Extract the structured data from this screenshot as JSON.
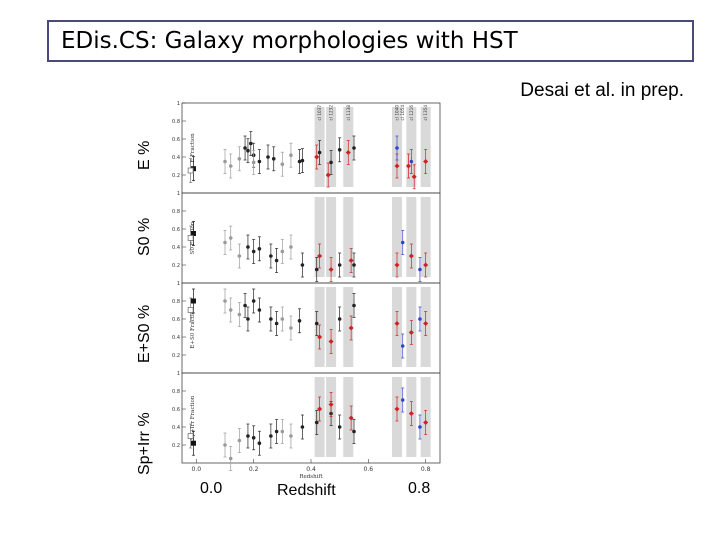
{
  "title": "EDis.CS: Galaxy morphologies with HST",
  "credit": "Desai et al. in prep.",
  "ylabels": {
    "e": "E %",
    "s0": "S0 %",
    "es0": "E+S0 %",
    "sp": "Sp+Irr %"
  },
  "xlabels": {
    "left": "0.0",
    "center": "Redshift",
    "right": "0.8"
  },
  "chart_data": {
    "type": "scatter",
    "xlabel": "Redshift",
    "xlim": [
      -0.05,
      0.85
    ],
    "xticks": [
      "0.0",
      "0.2",
      "0.4",
      "0.6",
      "0.8"
    ],
    "panels": [
      {
        "name": "E %",
        "inner_ylabel": "E Fraction",
        "ylim": [
          0,
          1
        ],
        "yticks": [
          "0.2",
          "0.4",
          "0.6",
          "0.8",
          "1"
        ],
        "series": [
          {
            "color": "#222222",
            "marker": "dot",
            "points": [
              [
                0.17,
                0.5
              ],
              [
                0.18,
                0.47
              ],
              [
                0.19,
                0.55
              ],
              [
                0.2,
                0.42
              ],
              [
                0.22,
                0.35
              ],
              [
                0.25,
                0.4
              ],
              [
                0.27,
                0.38
              ],
              [
                0.36,
                0.35
              ],
              [
                0.37,
                0.36
              ],
              [
                0.43,
                0.45
              ],
              [
                0.47,
                0.34
              ],
              [
                0.5,
                0.48
              ],
              [
                0.55,
                0.5
              ]
            ]
          },
          {
            "color": "#9a9a9a",
            "marker": "dot",
            "points": [
              [
                0.1,
                0.35
              ],
              [
                0.12,
                0.3
              ],
              [
                0.15,
                0.38
              ],
              [
                0.2,
                0.34
              ],
              [
                0.3,
                0.32
              ],
              [
                0.33,
                0.42
              ]
            ]
          },
          {
            "color": "#cc2222",
            "marker": "diamond",
            "points": [
              [
                0.42,
                0.4
              ],
              [
                0.46,
                0.2
              ],
              [
                0.53,
                0.45
              ],
              [
                0.7,
                0.3
              ],
              [
                0.74,
                0.3
              ],
              [
                0.76,
                0.18
              ],
              [
                0.8,
                0.35
              ]
            ]
          },
          {
            "color": "#3344cc",
            "marker": "dot",
            "points": [
              [
                0.7,
                0.5
              ],
              [
                0.75,
                0.35
              ]
            ]
          },
          {
            "color": "#111111",
            "marker": "square",
            "points": [
              [
                -0.01,
                0.27
              ]
            ]
          },
          {
            "color": "#777777",
            "marker": "open-square",
            "points": [
              [
                -0.02,
                0.25
              ]
            ]
          }
        ]
      },
      {
        "name": "S0 %",
        "inner_ylabel": "S0 Fraction",
        "ylim": [
          0,
          1
        ],
        "yticks": [
          "0.2",
          "0.4",
          "0.6",
          "0.8",
          "1"
        ],
        "series": [
          {
            "color": "#222222",
            "marker": "dot",
            "points": [
              [
                0.18,
                0.4
              ],
              [
                0.2,
                0.35
              ],
              [
                0.22,
                0.38
              ],
              [
                0.26,
                0.3
              ],
              [
                0.28,
                0.25
              ],
              [
                0.37,
                0.2
              ],
              [
                0.42,
                0.15
              ],
              [
                0.5,
                0.2
              ],
              [
                0.55,
                0.2
              ]
            ]
          },
          {
            "color": "#9a9a9a",
            "marker": "dot",
            "points": [
              [
                0.1,
                0.45
              ],
              [
                0.12,
                0.5
              ],
              [
                0.15,
                0.3
              ],
              [
                0.3,
                0.35
              ],
              [
                0.33,
                0.4
              ]
            ]
          },
          {
            "color": "#cc2222",
            "marker": "diamond",
            "points": [
              [
                0.43,
                0.3
              ],
              [
                0.47,
                0.15
              ],
              [
                0.54,
                0.25
              ],
              [
                0.7,
                0.2
              ],
              [
                0.75,
                0.3
              ],
              [
                0.8,
                0.2
              ]
            ]
          },
          {
            "color": "#3344cc",
            "marker": "dot",
            "points": [
              [
                0.72,
                0.45
              ],
              [
                0.78,
                0.15
              ]
            ]
          },
          {
            "color": "#111111",
            "marker": "square",
            "points": [
              [
                -0.01,
                0.55
              ]
            ]
          },
          {
            "color": "#777777",
            "marker": "open-square",
            "points": [
              [
                -0.02,
                0.5
              ]
            ]
          }
        ]
      },
      {
        "name": "E+S0 %",
        "inner_ylabel": "E+S0 Fraction",
        "ylim": [
          0,
          1
        ],
        "yticks": [
          "0.2",
          "0.4",
          "0.6",
          "0.8",
          "1"
        ],
        "series": [
          {
            "color": "#222222",
            "marker": "dot",
            "points": [
              [
                0.17,
                0.75
              ],
              [
                0.18,
                0.6
              ],
              [
                0.2,
                0.8
              ],
              [
                0.22,
                0.7
              ],
              [
                0.26,
                0.6
              ],
              [
                0.28,
                0.55
              ],
              [
                0.36,
                0.58
              ],
              [
                0.42,
                0.55
              ],
              [
                0.5,
                0.6
              ],
              [
                0.55,
                0.75
              ]
            ]
          },
          {
            "color": "#9a9a9a",
            "marker": "dot",
            "points": [
              [
                0.1,
                0.8
              ],
              [
                0.12,
                0.7
              ],
              [
                0.15,
                0.65
              ],
              [
                0.3,
                0.6
              ],
              [
                0.33,
                0.5
              ]
            ]
          },
          {
            "color": "#cc2222",
            "marker": "diamond",
            "points": [
              [
                0.43,
                0.4
              ],
              [
                0.47,
                0.35
              ],
              [
                0.54,
                0.5
              ],
              [
                0.7,
                0.55
              ],
              [
                0.75,
                0.45
              ],
              [
                0.8,
                0.55
              ]
            ]
          },
          {
            "color": "#3344cc",
            "marker": "dot",
            "points": [
              [
                0.72,
                0.3
              ],
              [
                0.78,
                0.6
              ]
            ]
          },
          {
            "color": "#111111",
            "marker": "square",
            "points": [
              [
                -0.01,
                0.8
              ]
            ]
          },
          {
            "color": "#777777",
            "marker": "open-square",
            "points": [
              [
                -0.02,
                0.7
              ]
            ]
          }
        ]
      },
      {
        "name": "Sp+Irr %",
        "inner_ylabel": "Sp+Irr Fraction",
        "ylim": [
          0,
          1
        ],
        "yticks": [
          "0.2",
          "0.4",
          "0.6",
          "0.8",
          "1"
        ],
        "series": [
          {
            "color": "#222222",
            "marker": "dot",
            "points": [
              [
                0.18,
                0.3
              ],
              [
                0.2,
                0.28
              ],
              [
                0.22,
                0.22
              ],
              [
                0.26,
                0.3
              ],
              [
                0.28,
                0.35
              ],
              [
                0.37,
                0.4
              ],
              [
                0.42,
                0.45
              ],
              [
                0.47,
                0.55
              ],
              [
                0.5,
                0.4
              ],
              [
                0.55,
                0.35
              ]
            ]
          },
          {
            "color": "#9a9a9a",
            "marker": "dot",
            "points": [
              [
                0.1,
                0.2
              ],
              [
                0.12,
                0.05
              ],
              [
                0.15,
                0.25
              ],
              [
                0.3,
                0.35
              ],
              [
                0.33,
                0.3
              ]
            ]
          },
          {
            "color": "#cc2222",
            "marker": "diamond",
            "points": [
              [
                0.43,
                0.6
              ],
              [
                0.47,
                0.65
              ],
              [
                0.54,
                0.5
              ],
              [
                0.7,
                0.6
              ],
              [
                0.75,
                0.55
              ],
              [
                0.8,
                0.45
              ]
            ]
          },
          {
            "color": "#3344cc",
            "marker": "dot",
            "points": [
              [
                0.72,
                0.7
              ],
              [
                0.78,
                0.4
              ]
            ]
          },
          {
            "color": "#111111",
            "marker": "square",
            "points": [
              [
                -0.01,
                0.22
              ]
            ]
          },
          {
            "color": "#777777",
            "marker": "open-square",
            "points": [
              [
                -0.02,
                0.3
              ]
            ]
          }
        ]
      }
    ],
    "shaded_bands_x": [
      0.43,
      0.47,
      0.53,
      0.7,
      0.75,
      0.8
    ],
    "annotations": [
      {
        "x": 0.43,
        "text": "cl 1037"
      },
      {
        "x": 0.47,
        "text": "cl 1232"
      },
      {
        "x": 0.53,
        "text": "cl 1138"
      },
      {
        "x": 0.7,
        "text": "cl 1040"
      },
      {
        "x": 0.72,
        "text": "cl 1054"
      },
      {
        "x": 0.75,
        "text": "cl 1216"
      },
      {
        "x": 0.8,
        "text": "cl 1354"
      }
    ]
  }
}
